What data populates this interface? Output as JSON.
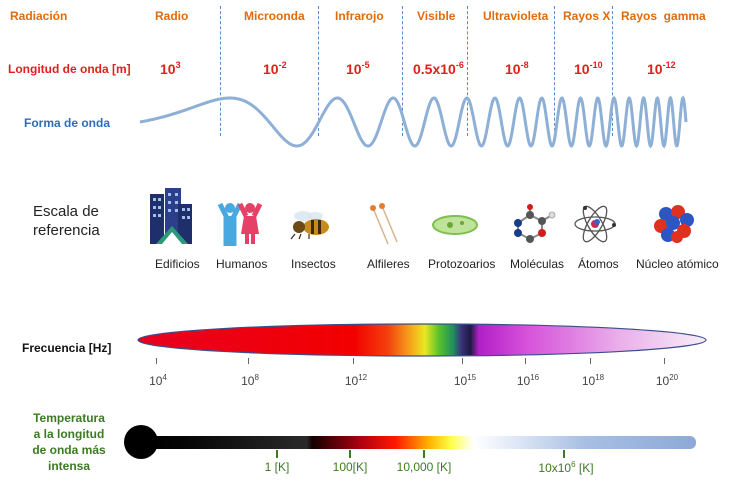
{
  "header": {
    "title": "Radiación",
    "bands": [
      "Radio",
      "Microonda",
      "Infrarojo",
      "Visible",
      "Ultravioleta",
      "Rayos X",
      "Rayos  gamma"
    ]
  },
  "wavelength": {
    "label": "Longitud de onda [m]",
    "values": [
      {
        "base": "10",
        "exp": "3"
      },
      {
        "base": "10",
        "exp": "-2"
      },
      {
        "base": "10",
        "exp": "-5"
      },
      {
        "base": "0.5x10",
        "exp": "-6"
      },
      {
        "base": "10",
        "exp": "-8"
      },
      {
        "base": "10",
        "exp": "-10"
      },
      {
        "base": "10",
        "exp": "-12"
      }
    ]
  },
  "waveform": {
    "label": "Forma de onda",
    "color": "#8eafd6"
  },
  "reference": {
    "label_line1": "Escala de",
    "label_line2": "referencia",
    "items": [
      {
        "name": "Edificios",
        "icon": "buildings-icon"
      },
      {
        "name": "Humanos",
        "icon": "humans-icon"
      },
      {
        "name": "Insectos",
        "icon": "bee-icon"
      },
      {
        "name": "Alfileres",
        "icon": "pins-icon"
      },
      {
        "name": "Protozoarios",
        "icon": "protozoa-icon"
      },
      {
        "name": "Moléculas",
        "icon": "molecule-icon"
      },
      {
        "name": "Átomos",
        "icon": "atom-icon"
      },
      {
        "name": "Núcleo atómico",
        "icon": "nucleus-icon"
      }
    ]
  },
  "frequency": {
    "label": "Frecuencia [Hz]",
    "ticks": [
      {
        "base": "10",
        "exp": "4"
      },
      {
        "base": "10",
        "exp": "8"
      },
      {
        "base": "10",
        "exp": "12"
      },
      {
        "base": "10",
        "exp": "15"
      },
      {
        "base": "10",
        "exp": "16"
      },
      {
        "base": "10",
        "exp": "18"
      },
      {
        "base": "10",
        "exp": "20"
      }
    ]
  },
  "temperature": {
    "label_line1": "Temperatura",
    "label_line2": "a la longitud",
    "label_line3": "de onda más",
    "label_line4": "intensa",
    "ticks": [
      {
        "text": "1 [K]",
        "sup": ""
      },
      {
        "text": "100[K]",
        "sup": ""
      },
      {
        "text": "10,000 [K]",
        "sup": ""
      },
      {
        "text": "10x10",
        "sup": "6",
        "suffix": " [K]"
      }
    ]
  },
  "colors": {
    "band": "#e26b0a",
    "label_red": "#e0201b",
    "label_blue": "#2e6db4",
    "temp_green": "#3c7a23"
  }
}
